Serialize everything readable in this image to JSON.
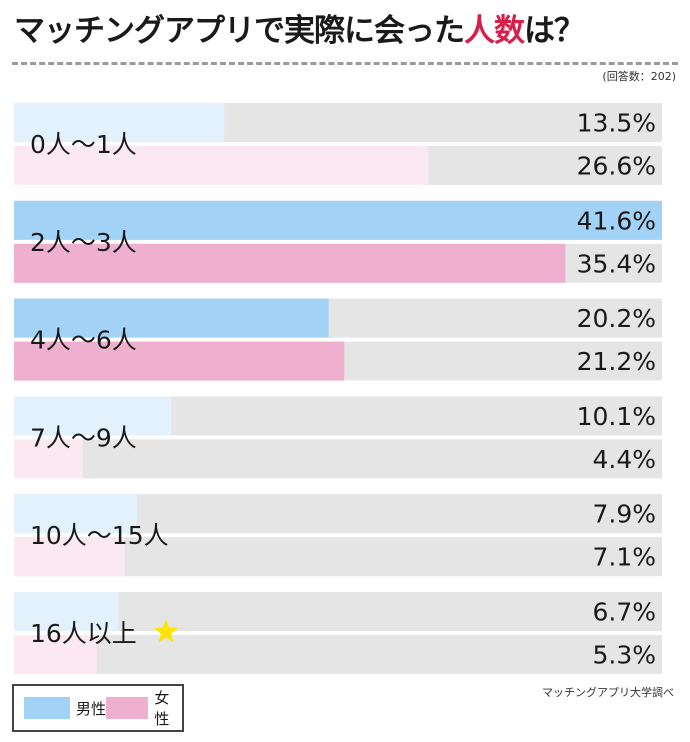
{
  "header": {
    "title_main": "マッチングアプリで実際に会った",
    "title_accent": "人数",
    "title_tail": "は？",
    "note": "(回答数：202)"
  },
  "source": "マッチングアプリ大学調べ",
  "legend": [
    {
      "name": "男性",
      "color": "#a2d2f6"
    },
    {
      "name": "女性",
      "color": "#efb0cf"
    }
  ],
  "colors": {
    "male": "#a2d2f6",
    "male_light": "#e2f1fc",
    "female": "#efb0cf",
    "female_light": "#fbe8f1",
    "track": "#e5e5e5",
    "star": "#ffe400"
  },
  "chart_data": {
    "type": "bar",
    "orientation": "horizontal",
    "categories": [
      "0人〜1人",
      "2人〜3人",
      "4人〜6人",
      "7人〜9人",
      "10人〜15人",
      "16人以上"
    ],
    "series": [
      {
        "name": "男性",
        "values": [
          13.5,
          41.6,
          20.2,
          10.1,
          7.9,
          6.7
        ]
      },
      {
        "name": "女性",
        "values": [
          26.6,
          35.4,
          21.2,
          4.4,
          7.1,
          5.3
        ]
      }
    ],
    "value_labels": {
      "male": [
        "13.5%",
        "41.6%",
        "20.2%",
        "10.1%",
        "7.9%",
        "6.7%"
      ],
      "female": [
        "26.6%",
        "35.4%",
        "21.2%",
        "4.4%",
        "7.1%",
        "5.3%"
      ]
    },
    "xlim": [
      0,
      41.6
    ],
    "highlight_bold_categories": [
      1,
      2
    ],
    "star_category": 5,
    "legend_position": "bottom-left"
  }
}
